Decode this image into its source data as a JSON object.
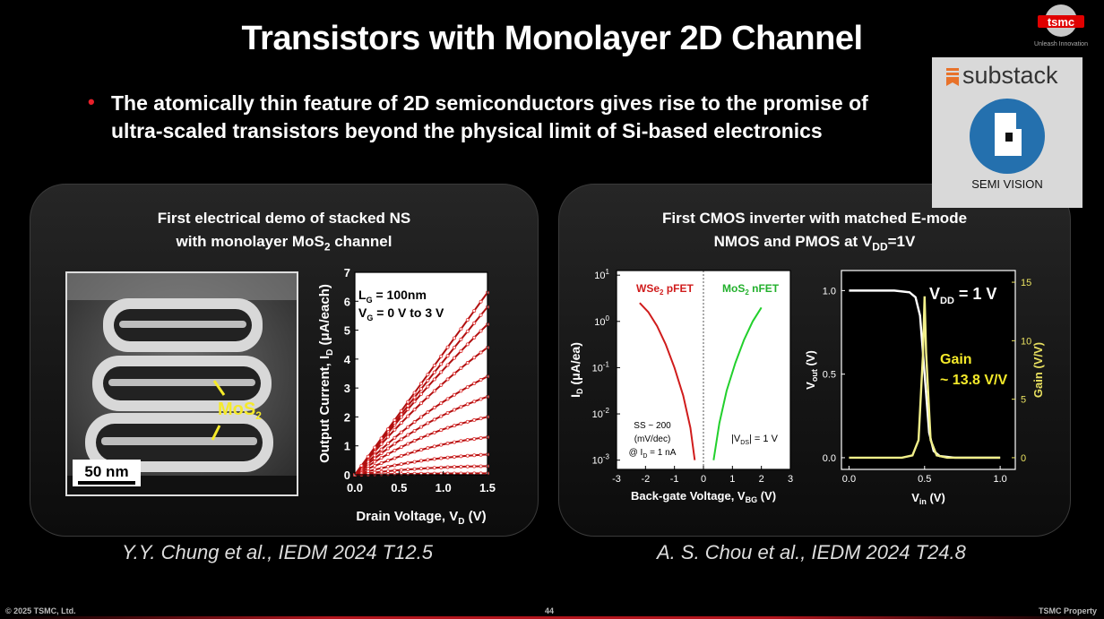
{
  "slide": {
    "title": "Transistors with Monolayer 2D Channel",
    "bullet_line1": "The atomically thin feature of 2D semiconductors gives rise to the promise of",
    "bullet_line2": "ultra-scaled transistors beyond the physical limit of Si-based electronics",
    "logo_text": "tsmc",
    "logo_tagline": "Unleash Innovation",
    "footer_left": "© 2025 TSMC, Ltd.",
    "page_number": "44",
    "footer_right": "TSMC Property"
  },
  "watermark": {
    "brand": "substack",
    "label": "SEMI VISION"
  },
  "left_panel": {
    "title_line1": "First electrical demo of stacked NS",
    "title_line2": "with monolayer MoS",
    "title_line2_sub": "2",
    "title_line2_end": " channel",
    "tem_label": "MoS",
    "tem_label_sub": "2",
    "scale_bar": "50 nm",
    "reference": "Y.Y. Chung et al., IEDM 2024 T12.5"
  },
  "right_panel": {
    "title_line1": "First CMOS inverter with matched E-mode",
    "title_line2": "NMOS and PMOS at V",
    "title_line2_sub": "DD",
    "title_line2_end": "=1V",
    "reference": "A. S. Chou et al., IEDM 2024 T24.8"
  },
  "chart_data": [
    {
      "type": "scatter",
      "xlabel": "Drain Voltage, V",
      "xlabel_sub": "D",
      "xlabel_end": " (V)",
      "ylabel": "Output Current, I",
      "ylabel_sub": "D",
      "ylabel_end": " (μA/each)",
      "xlim": [
        0,
        1.5
      ],
      "ylim": [
        0,
        7
      ],
      "xticks": [
        "0.0",
        "0.5",
        "1.0",
        "1.5"
      ],
      "yticks": [
        "0",
        "1",
        "2",
        "3",
        "4",
        "5",
        "6",
        "7"
      ],
      "annotation1": "L",
      "annotation1_sub": "G",
      "annotation1_end": " = 100nm",
      "annotation2": "V",
      "annotation2_sub": "G",
      "annotation2_end": " = 0 V to 3 V",
      "series_final_values": [
        0.05,
        0.3,
        0.7,
        1.3,
        2.0,
        2.7,
        3.4,
        4.4,
        5.2,
        5.8,
        6.3
      ]
    },
    {
      "type": "line",
      "yscale": "log",
      "xlabel": "Back-gate Voltage, V",
      "xlabel_sub": "BG",
      "xlabel_end": " (V)",
      "ylabel": "I",
      "ylabel_sub": "D",
      "ylabel_end": " (μA/ea)",
      "xlim": [
        -3,
        3
      ],
      "ylim_exp": [
        -3,
        1
      ],
      "xticks": [
        "-3",
        "-2",
        "-1",
        "0",
        "1",
        "2",
        "3"
      ],
      "ytick_exps": [
        "1",
        "0",
        "-1",
        "-2",
        "-3"
      ],
      "ytick_base": "10",
      "series": [
        {
          "name": "WSe",
          "name_sub": "2",
          "name_end": " pFET",
          "color": "#d01c1c",
          "x": [
            -2.2,
            -1.9,
            -1.6,
            -1.3,
            -1.0,
            -0.7,
            -0.45,
            -0.3
          ],
          "y_exp": [
            0.4,
            0.2,
            -0.1,
            -0.5,
            -1.0,
            -1.6,
            -2.3,
            -3.0
          ]
        },
        {
          "name": "MoS",
          "name_sub": "2",
          "name_end": " nFET",
          "color": "#22d02c",
          "x": [
            0.35,
            0.55,
            0.8,
            1.1,
            1.4,
            1.7,
            2.0
          ],
          "y_exp": [
            -3.0,
            -2.2,
            -1.5,
            -0.9,
            -0.4,
            0.0,
            0.3
          ]
        }
      ],
      "annotation_ss1": "SS ~ 200",
      "annotation_ss2": "(mV/dec)",
      "annotation_ss3": "@ I",
      "annotation_ss3_sub": "D",
      "annotation_ss3_end": " = 1 nA",
      "annotation_vds": "|V",
      "annotation_vds_sub": "DS",
      "annotation_vds_end": "| = 1 V"
    },
    {
      "type": "line",
      "xlabel": "V",
      "xlabel_sub": "in",
      "xlabel_end": " (V)",
      "ylabel": "V",
      "ylabel_sub": "out",
      "ylabel_end": " (V)",
      "y2label": "Gain (V/V)",
      "xlim": [
        0,
        1.1
      ],
      "ylim": [
        0,
        1.1
      ],
      "y2lim": [
        0,
        15.5
      ],
      "xticks": [
        "0.0",
        "0.5",
        "1.0"
      ],
      "yticks": [
        "0.0",
        "0.5",
        "1.0"
      ],
      "y2ticks": [
        "0",
        "5",
        "10",
        "15"
      ],
      "vtc": {
        "x": [
          0,
          0.3,
          0.4,
          0.44,
          0.47,
          0.5,
          0.53,
          0.56,
          0.6,
          0.7,
          1.0
        ],
        "y": [
          1.0,
          1.0,
          0.99,
          0.96,
          0.85,
          0.5,
          0.15,
          0.04,
          0.01,
          0.0,
          0.0
        ]
      },
      "gain": {
        "x": [
          0,
          0.35,
          0.42,
          0.46,
          0.49,
          0.5,
          0.51,
          0.54,
          0.58,
          0.65,
          1.0
        ],
        "y": [
          0,
          0,
          0.2,
          1.5,
          9,
          13.8,
          9,
          1.5,
          0.2,
          0,
          0
        ]
      },
      "annotation_vdd": "V",
      "annotation_vdd_sub": "DD",
      "annotation_vdd_end": " = 1 V",
      "annotation_gain1": "Gain",
      "annotation_gain2": "~ 13.8 V/V",
      "colors": {
        "vtc": "#ffffff",
        "gain": "#f2f08a",
        "axis_right": "#e8e060"
      }
    }
  ]
}
